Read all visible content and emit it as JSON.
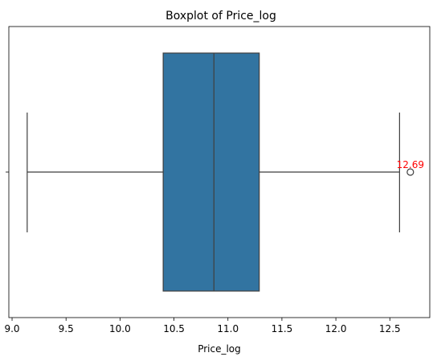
{
  "chart_data": {
    "type": "boxplot",
    "title": "Boxplot of Price_log",
    "xlabel": "Price_log",
    "ylabel": "",
    "xlim": [
      8.97,
      12.87
    ],
    "xticks": [
      "9.0",
      "9.5",
      "10.0",
      "10.5",
      "11.0",
      "11.5",
      "12.0",
      "12.5"
    ],
    "xtick_values": [
      9.0,
      9.5,
      10.0,
      10.5,
      11.0,
      11.5,
      12.0,
      12.5
    ],
    "grid": false,
    "box": {
      "whisker_low": 9.14,
      "q1": 10.4,
      "median": 10.87,
      "q3": 11.29,
      "whisker_high": 12.59
    },
    "outliers": [
      12.69
    ],
    "annotation": {
      "text": "12.69",
      "x": 12.69,
      "color": "#ff0000"
    },
    "colors": {
      "box_fill": "#3274a1",
      "line": "#3f3f3f"
    }
  }
}
